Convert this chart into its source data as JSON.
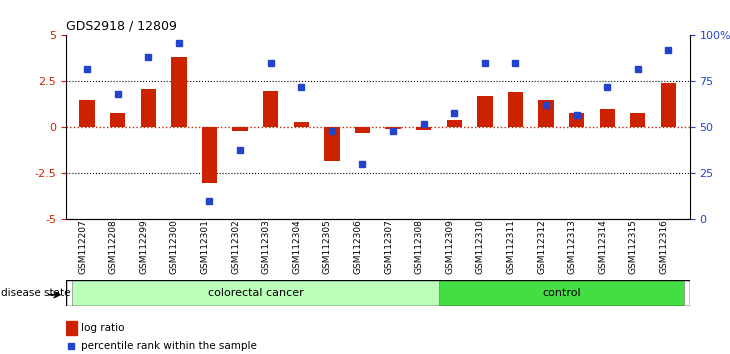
{
  "title": "GDS2918 / 12809",
  "samples": [
    "GSM112207",
    "GSM112208",
    "GSM112299",
    "GSM112300",
    "GSM112301",
    "GSM112302",
    "GSM112303",
    "GSM112304",
    "GSM112305",
    "GSM112306",
    "GSM112307",
    "GSM112308",
    "GSM112309",
    "GSM112310",
    "GSM112311",
    "GSM112312",
    "GSM112313",
    "GSM112314",
    "GSM112315",
    "GSM112316"
  ],
  "log_ratio": [
    1.5,
    0.8,
    2.1,
    3.8,
    -3.0,
    -0.2,
    2.0,
    0.3,
    -1.8,
    -0.3,
    -0.1,
    -0.15,
    0.4,
    1.7,
    1.9,
    1.5,
    0.8,
    1.0,
    0.8,
    2.4
  ],
  "percentile": [
    82,
    68,
    88,
    96,
    10,
    38,
    85,
    72,
    48,
    30,
    48,
    52,
    58,
    85,
    85,
    62,
    57,
    72,
    82,
    92
  ],
  "colorectal_count": 12,
  "control_count": 8,
  "bar_color": "#cc2200",
  "dot_color": "#2244cc",
  "ylim": [
    -5,
    5
  ],
  "yticks_left": [
    -5,
    -2.5,
    0,
    2.5,
    5
  ],
  "ytick_labels_left": [
    "-5",
    "-2.5",
    "0",
    "2.5",
    "5"
  ],
  "ytick_labels_right": [
    "0",
    "25",
    "50",
    "75",
    "100%"
  ],
  "hlines": [
    2.5,
    0,
    -2.5
  ],
  "colorectal_color": "#bbffbb",
  "control_color": "#44dd44",
  "disease_label": "disease state",
  "colorectal_label": "colorectal cancer",
  "control_label": "control",
  "legend_bar_label": "log ratio",
  "legend_dot_label": "percentile rank within the sample"
}
